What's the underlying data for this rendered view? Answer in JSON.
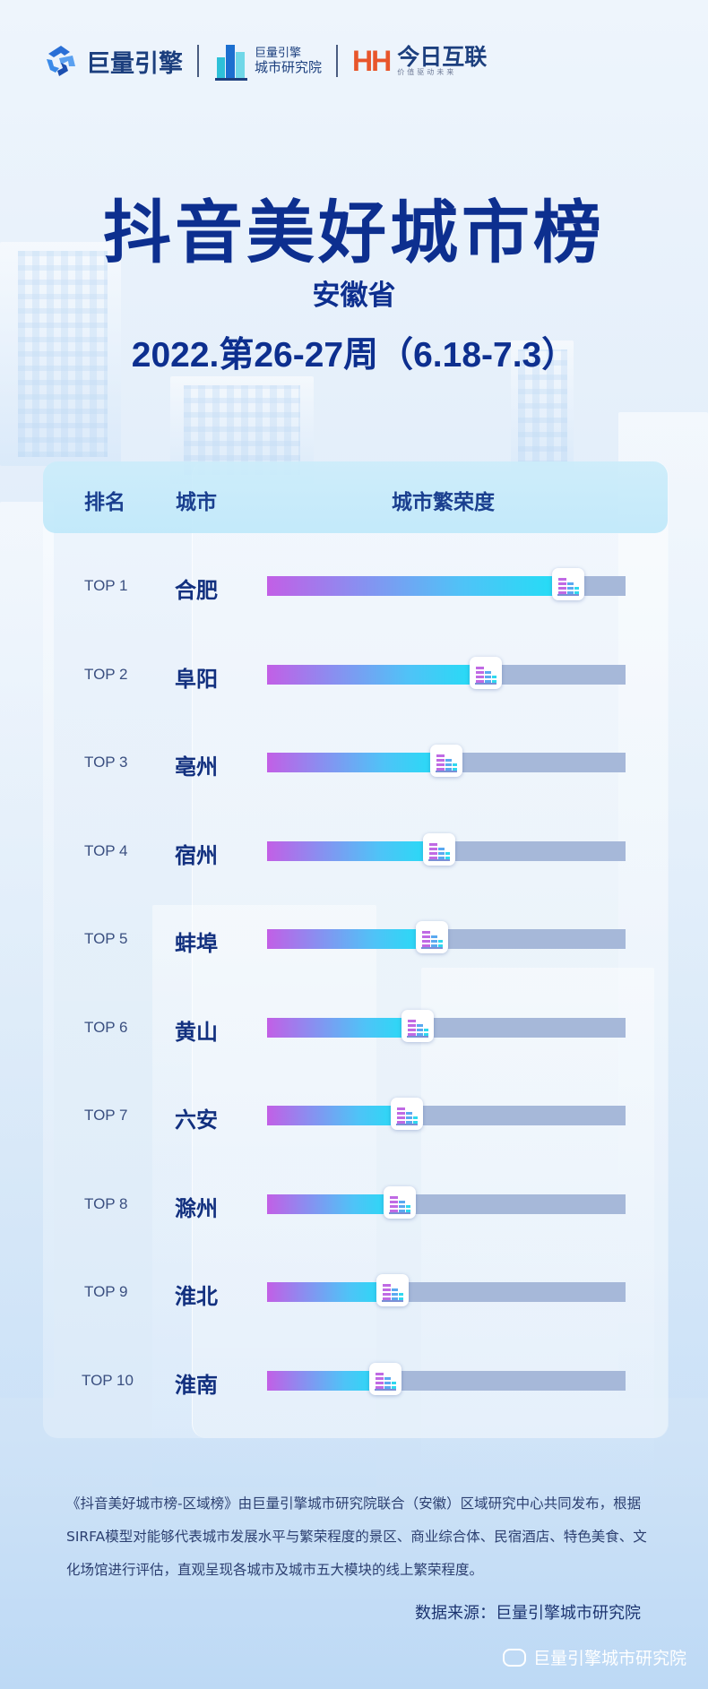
{
  "logos": {
    "logo1_text": "巨量引擎",
    "logo2_line1": "巨量引擎",
    "logo2_line2": "城市研究院",
    "logo3_mark": "HH",
    "logo3_text": "今日互联",
    "logo3_tagline": "价值驱动未来"
  },
  "title": "抖音美好城市榜",
  "subtitle": "安徽省",
  "period": "2022.第26-27周（6.18-7.3）",
  "table_header": {
    "rank": "排名",
    "city": "城市",
    "prosperity": "城市繁荣度"
  },
  "chart_data": {
    "type": "bar",
    "orientation": "horizontal",
    "ylabel": "城市繁荣度",
    "ranks": [
      "TOP 1",
      "TOP 2",
      "TOP 3",
      "TOP 4",
      "TOP 5",
      "TOP 6",
      "TOP 7",
      "TOP 8",
      "TOP 9",
      "TOP 10"
    ],
    "categories": [
      "合肥",
      "阜阳",
      "亳州",
      "宿州",
      "蚌埠",
      "黄山",
      "六安",
      "滁州",
      "淮北",
      "淮南"
    ],
    "values": [
      0.84,
      0.61,
      0.5,
      0.48,
      0.46,
      0.42,
      0.39,
      0.37,
      0.35,
      0.33
    ],
    "value_unit": "fraction of bar track",
    "colors": {
      "fill_start": "#c25fe6",
      "fill_end": "#1fe0f5",
      "track": "#a6b8d9"
    }
  },
  "note": "《抖音美好城市榜-区域榜》由巨量引擎城市研究院联合（安徽）区域研究中心共同发布，根据SIRFA模型对能够代表城市发展水平与繁荣程度的景区、商业综合体、民宿酒店、特色美食、文化场馆进行评估，直观呈现各城市及城市五大模块的线上繁荣程度。",
  "source": "数据来源：巨量引擎城市研究院",
  "watermark": "巨量引擎城市研究院"
}
